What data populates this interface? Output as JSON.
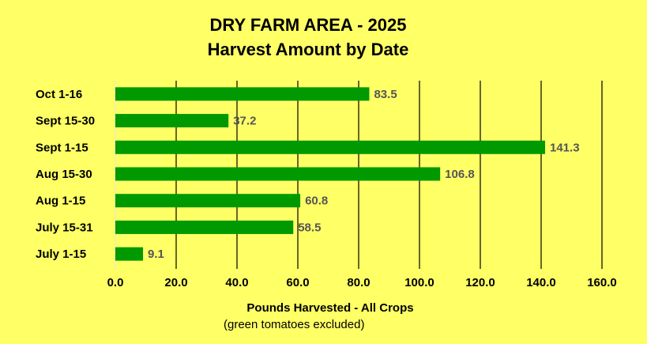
{
  "chart_data": {
    "type": "hbar",
    "title": "DRY FARM AREA - 2025",
    "subtitle": "Harvest Amount by Date",
    "categories": [
      "Oct 1-16",
      "Sept 15-30",
      "Sept 1-15",
      "Aug 15-30",
      "Aug 1-15",
      "July 15-31",
      "July 1-15"
    ],
    "values": [
      83.5,
      37.2,
      141.3,
      106.8,
      60.8,
      58.5,
      9.1
    ],
    "color": "#009900",
    "xlim": [
      0,
      160
    ],
    "xticks": [
      {
        "value": 0,
        "label": "0.0"
      },
      {
        "value": 20,
        "label": "20.0"
      },
      {
        "value": 40,
        "label": "40.0"
      },
      {
        "value": 60,
        "label": "60.0"
      },
      {
        "value": 80,
        "label": "80.0"
      },
      {
        "value": 100,
        "label": "100.0"
      },
      {
        "value": 120,
        "label": "120.0"
      },
      {
        "value": 140,
        "label": "140.0"
      },
      {
        "value": 160,
        "label": "160.0"
      }
    ],
    "grid": true,
    "xlabel": "Pounds Harvested - All Crops",
    "xlabel_note": "(green tomatoes excluded)"
  }
}
